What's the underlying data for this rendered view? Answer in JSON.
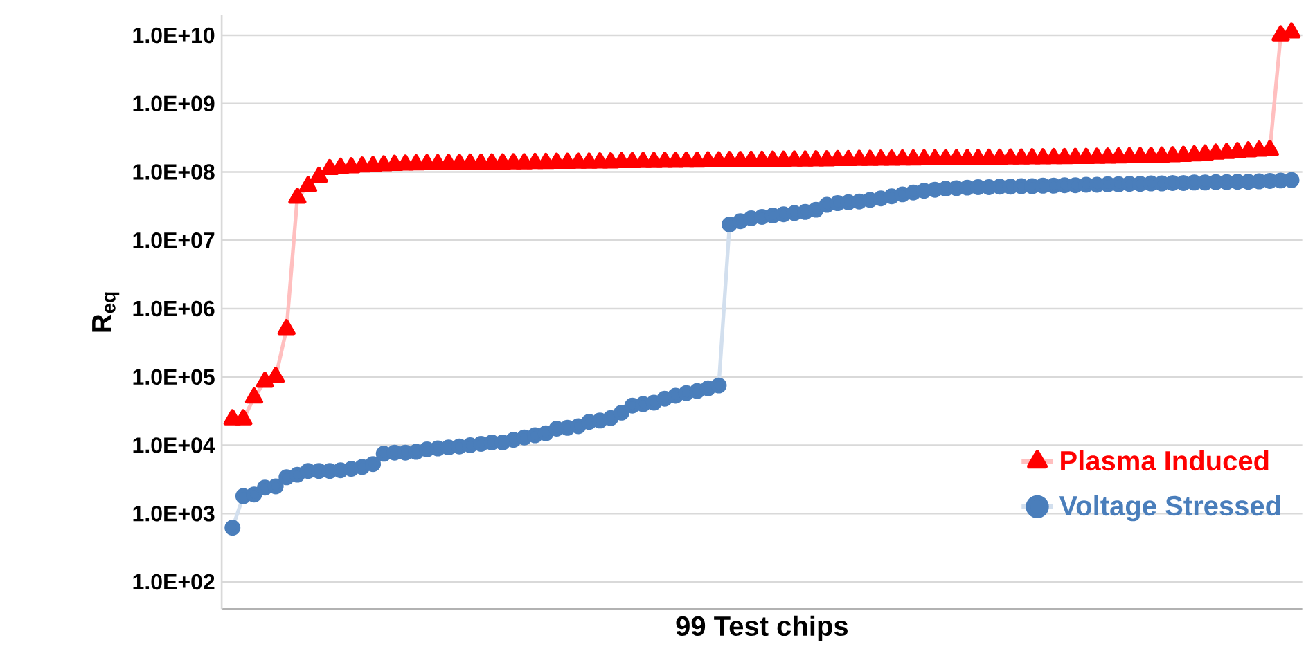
{
  "chart_data": {
    "type": "line",
    "xlabel": "99 Test chips",
    "ylabel": "R$_{eq}$",
    "categories": [
      null,
      null,
      null,
      null,
      null,
      null,
      null,
      null,
      null,
      null,
      null,
      null,
      null,
      null,
      null,
      null,
      null,
      null,
      null,
      null,
      null,
      null,
      null,
      null,
      null,
      null,
      null,
      null,
      null,
      null,
      null,
      null,
      null,
      null,
      null,
      null,
      null,
      null,
      null,
      null,
      null,
      null,
      null,
      null,
      null,
      null,
      null,
      null,
      null,
      null,
      null,
      null,
      null,
      null,
      null,
      null,
      null,
      null,
      null,
      null,
      null,
      null,
      null,
      null,
      null,
      null,
      null,
      null,
      null,
      null,
      null,
      null,
      null,
      null,
      null,
      null,
      null,
      null,
      null,
      null,
      null,
      null,
      null,
      null,
      null,
      null,
      null,
      null,
      null,
      null,
      null,
      null,
      null,
      null,
      null,
      null,
      null,
      null,
      null
    ],
    "series": [
      {
        "name": "Plasma Induced",
        "color": "#ff0000",
        "marker": "triangle",
        "values": [
          24000,
          24000,
          50000,
          85000,
          100000,
          500000,
          42000000,
          62000000,
          85000000,
          110000000,
          115000000.0,
          117000000.0,
          120000000.0,
          122000000.0,
          125000000.0,
          127000000.0,
          128000000.0,
          129000000.0,
          130000000.0,
          130000000.0,
          131000000.0,
          131000000.0,
          132000000.0,
          132000000.0,
          133000000.0,
          133000000.0,
          134000000.0,
          134000000.0,
          135000000.0,
          135000000.0,
          136000000.0,
          136000000.0,
          137000000.0,
          137000000.0,
          138000000.0,
          138000000.0,
          139000000.0,
          139000000.0,
          140000000.0,
          140000000.0,
          141000000.0,
          141000000.0,
          142000000.0,
          142000000.0,
          143000000.0,
          143000000.0,
          144000000.0,
          144000000.0,
          145000000.0,
          145000000.0,
          146000000.0,
          146000000.0,
          147000000.0,
          147000000.0,
          148000000.0,
          148000000.0,
          149000000.0,
          149000000.0,
          150000000.0,
          150000000.0,
          151000000.0,
          151000000.0,
          152000000.0,
          152000000.0,
          153000000.0,
          153000000.0,
          154000000.0,
          154000000.0,
          155000000.0,
          155000000.0,
          156000000.0,
          156000000.0,
          157000000.0,
          157000000.0,
          158000000.0,
          158000000.0,
          159000000.0,
          159000000.0,
          160000000.0,
          160000000.0,
          161000000.0,
          162000000.0,
          163000000.0,
          164000000.0,
          165000000.0,
          166000000.0,
          168000000.0,
          170000000.0,
          172000000.0,
          175000000.0,
          180000000.0,
          185000000.0,
          190000000.0,
          195000000.0,
          200000000.0,
          205000000.0,
          210000000.0,
          10000000000.0,
          11000000000.0
        ]
      },
      {
        "name": "Voltage  Stressed",
        "color": "#4a7ebb",
        "marker": "circle",
        "values": [
          620,
          1800,
          1900,
          2400,
          2500,
          3400,
          3700,
          4200,
          4200,
          4200,
          4300,
          4500,
          4800,
          5300,
          7500,
          7800,
          7800,
          8000,
          8700,
          9000,
          9300,
          9600,
          10000,
          10500,
          11000,
          11000,
          12000,
          13000,
          14000,
          15000,
          17500,
          18000,
          19000,
          22000,
          23000,
          25000,
          30000,
          38000,
          40000,
          42000,
          48000,
          53000,
          58000,
          62000,
          68000,
          75000,
          17000000,
          19000000,
          21000000,
          22000000,
          23000000,
          24000000,
          25000000,
          26000000,
          28000000,
          33000000,
          35000000,
          36000000,
          37000000,
          39000000,
          41000000,
          44000000,
          47000000,
          50000000,
          53000000,
          55000000,
          57000000,
          58000000.0,
          59000000.0,
          60000000.0,
          60000000.0,
          61000000.0,
          61000000.0,
          62000000.0,
          62000000.0,
          63000000.0,
          63000000.0,
          64000000.0,
          64000000.0,
          65000000.0,
          65000000.0,
          66000000.0,
          66000000.0,
          67000000.0,
          67000000.0,
          68000000.0,
          68000000.0,
          69000000.0,
          69000000.0,
          70000000.0,
          70000000.0,
          71000000.0,
          71000000.0,
          72000000.0,
          72000000.0,
          73000000.0,
          74000000.0,
          75000000.0,
          76000000.0
        ]
      }
    ],
    "log": "y",
    "ylim": [
      40,
      20000000000.0
    ],
    "yticks": [
      {
        "value": 100,
        "label": "1.0E+02"
      },
      {
        "value": 1000,
        "label": "1.0E+03"
      },
      {
        "value": 10000,
        "label": "1.0E+04"
      },
      {
        "value": 100000,
        "label": "1.0E+05"
      },
      {
        "value": 1000000,
        "label": "1.0E+06"
      },
      {
        "value": 10000000,
        "label": "1.0E+07"
      },
      {
        "value": 100000000,
        "label": "1.0E+08"
      },
      {
        "value": 1000000000,
        "label": "1.0E+09"
      },
      {
        "value": 10000000000,
        "label": "1.0E+10"
      }
    ],
    "grid": "y",
    "legend": "bottom right",
    "tick_labels": "y",
    "line_style": "solid"
  }
}
